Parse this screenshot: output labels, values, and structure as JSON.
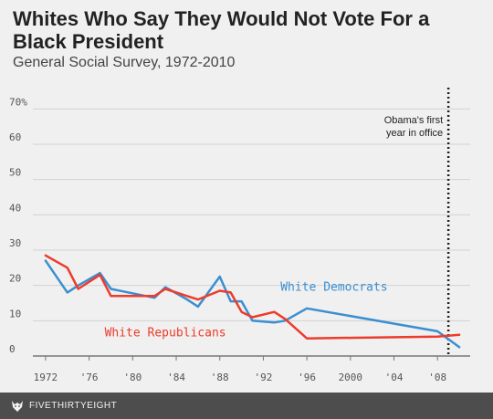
{
  "header": {
    "title": "Whites Who Say They Would Not Vote For a Black President",
    "subtitle": "General Social Survey, 1972-2010"
  },
  "footer": {
    "brand": "FIVETHIRTYEIGHT",
    "logo_icon": "fox-icon"
  },
  "colors": {
    "democrats": "#3a8fd1",
    "republicans": "#ee3b2b",
    "grid": "#d2d2d2",
    "annotation_line": "#222222"
  },
  "chart_data": {
    "type": "line",
    "title": "Whites Who Say They Would Not Vote For a Black President",
    "subtitle": "General Social Survey, 1972-2010",
    "xlabel": "",
    "ylabel": "",
    "xlim": [
      1971,
      2011
    ],
    "ylim": [
      0,
      75
    ],
    "x_ticks": [
      {
        "value": 1972,
        "label": "1972"
      },
      {
        "value": 1976,
        "label": "'76"
      },
      {
        "value": 1980,
        "label": "'80"
      },
      {
        "value": 1984,
        "label": "'84"
      },
      {
        "value": 1988,
        "label": "'88"
      },
      {
        "value": 1992,
        "label": "'92"
      },
      {
        "value": 1996,
        "label": "'96"
      },
      {
        "value": 2000,
        "label": "2000"
      },
      {
        "value": 2004,
        "label": "'04"
      },
      {
        "value": 2008,
        "label": "'08"
      }
    ],
    "y_ticks": [
      {
        "value": 0,
        "label": "0"
      },
      {
        "value": 10,
        "label": "10"
      },
      {
        "value": 20,
        "label": "20"
      },
      {
        "value": 30,
        "label": "30"
      },
      {
        "value": 40,
        "label": "40"
      },
      {
        "value": 50,
        "label": "50"
      },
      {
        "value": 60,
        "label": "60"
      },
      {
        "value": 70,
        "label": "70%"
      }
    ],
    "grid": true,
    "series": [
      {
        "name": "White Democrats",
        "color": "#3a8fd1",
        "x": [
          1972,
          1974,
          1975,
          1977,
          1978,
          1982,
          1983,
          1985,
          1986,
          1988,
          1989,
          1990,
          1991,
          1993,
          1994,
          1996,
          2008,
          2010
        ],
        "y": [
          27,
          18,
          20,
          23.5,
          19,
          16.5,
          19.5,
          16,
          14,
          22.5,
          15.5,
          15.5,
          10,
          9.5,
          10,
          13.5,
          7,
          2.5
        ]
      },
      {
        "name": "White Republicans",
        "color": "#ee3b2b",
        "x": [
          1972,
          1974,
          1975,
          1977,
          1978,
          1982,
          1983,
          1985,
          1986,
          1988,
          1989,
          1990,
          1991,
          1993,
          1994,
          1996,
          2008,
          2010
        ],
        "y": [
          28.5,
          25,
          19,
          23,
          17,
          17,
          19,
          17,
          16,
          18.5,
          18,
          12.5,
          11,
          12.5,
          10.5,
          5,
          5.5,
          6
        ]
      }
    ],
    "series_labels": [
      {
        "series": "White Democrats",
        "text": "White Democrats",
        "x": 1998.5,
        "y": 18.5
      },
      {
        "series": "White Republicans",
        "text": "White Republicans",
        "x": 1983,
        "y": 5.5
      }
    ],
    "annotations": [
      {
        "type": "vline",
        "x": 2009,
        "text_lines": [
          "Obama's first",
          "year in office"
        ],
        "text_y": 66
      }
    ]
  }
}
